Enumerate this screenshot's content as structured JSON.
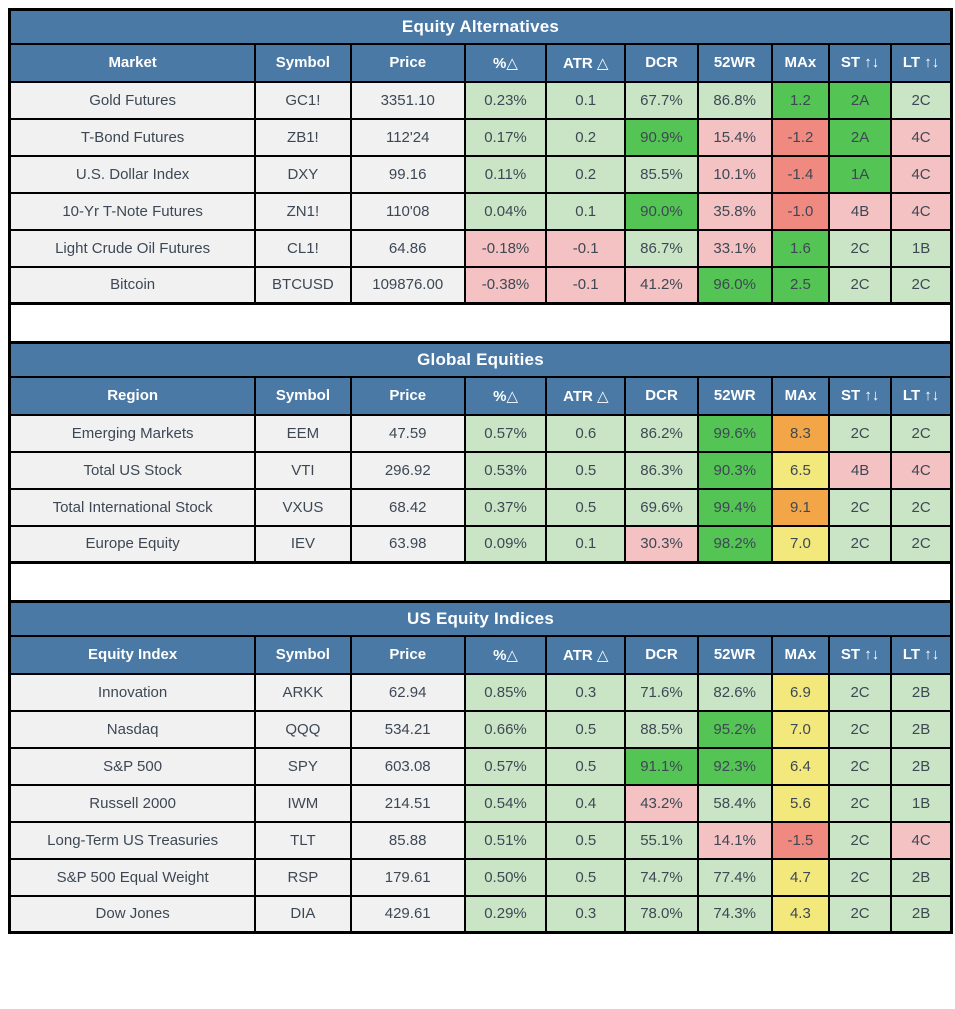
{
  "colors": {
    "header_blue": "#4a79a5",
    "bright_green": "#54c454",
    "light_green": "#cae5c5",
    "light_red": "#f4c2c3",
    "strong_red": "#f08a81",
    "yellow": "#f3e87c",
    "orange": "#f3a647",
    "neutral_cell": "#f1f1f2",
    "text": "#3d4854",
    "grid_line": "#000000"
  },
  "tables": [
    {
      "title": "Equity Alternatives",
      "headers": [
        "Market",
        "Symbol",
        "Price",
        "%△",
        "ATR △",
        "DCR",
        "52WR",
        "MAx",
        "ST ↑↓",
        "LT ↑↓"
      ],
      "rows": [
        {
          "cells": [
            [
              "Gold Futures",
              "n"
            ],
            [
              "GC1!",
              "n"
            ],
            [
              "3351.10",
              "n"
            ],
            [
              "0.23%",
              "lg"
            ],
            [
              "0.1",
              "lg"
            ],
            [
              "67.7%",
              "lg"
            ],
            [
              "86.8%",
              "lg"
            ],
            [
              "1.2",
              "g"
            ],
            [
              "2A",
              "g"
            ],
            [
              "2C",
              "lg"
            ]
          ]
        },
        {
          "cells": [
            [
              "T-Bond Futures",
              "n"
            ],
            [
              "ZB1!",
              "n"
            ],
            [
              "112'24",
              "n"
            ],
            [
              "0.17%",
              "lg"
            ],
            [
              "0.2",
              "lg"
            ],
            [
              "90.9%",
              "g"
            ],
            [
              "15.4%",
              "p"
            ],
            [
              "-1.2",
              "r"
            ],
            [
              "2A",
              "g"
            ],
            [
              "4C",
              "p"
            ]
          ]
        },
        {
          "cells": [
            [
              "U.S. Dollar Index",
              "n"
            ],
            [
              "DXY",
              "n"
            ],
            [
              "99.16",
              "n"
            ],
            [
              "0.11%",
              "lg"
            ],
            [
              "0.2",
              "lg"
            ],
            [
              "85.5%",
              "lg"
            ],
            [
              "10.1%",
              "p"
            ],
            [
              "-1.4",
              "r"
            ],
            [
              "1A",
              "g"
            ],
            [
              "4C",
              "p"
            ]
          ]
        },
        {
          "cells": [
            [
              "10-Yr T-Note Futures",
              "n"
            ],
            [
              "ZN1!",
              "n"
            ],
            [
              "110'08",
              "n"
            ],
            [
              "0.04%",
              "lg"
            ],
            [
              "0.1",
              "lg"
            ],
            [
              "90.0%",
              "g"
            ],
            [
              "35.8%",
              "p"
            ],
            [
              "-1.0",
              "r"
            ],
            [
              "4B",
              "p"
            ],
            [
              "4C",
              "p"
            ]
          ]
        },
        {
          "cells": [
            [
              "Light Crude Oil Futures",
              "n"
            ],
            [
              "CL1!",
              "n"
            ],
            [
              "64.86",
              "n"
            ],
            [
              "-0.18%",
              "p"
            ],
            [
              "-0.1",
              "p"
            ],
            [
              "86.7%",
              "lg"
            ],
            [
              "33.1%",
              "p"
            ],
            [
              "1.6",
              "g"
            ],
            [
              "2C",
              "lg"
            ],
            [
              "1B",
              "lg"
            ]
          ]
        },
        {
          "cells": [
            [
              "Bitcoin",
              "n"
            ],
            [
              "BTCUSD",
              "n"
            ],
            [
              "109876.00",
              "n"
            ],
            [
              "-0.38%",
              "p"
            ],
            [
              "-0.1",
              "p"
            ],
            [
              "41.2%",
              "p"
            ],
            [
              "96.0%",
              "g"
            ],
            [
              "2.5",
              "g"
            ],
            [
              "2C",
              "lg"
            ],
            [
              "2C",
              "lg"
            ]
          ]
        }
      ]
    },
    {
      "title": "Global Equities",
      "headers": [
        "Region",
        "Symbol",
        "Price",
        "%△",
        "ATR △",
        "DCR",
        "52WR",
        "MAx",
        "ST ↑↓",
        "LT ↑↓"
      ],
      "rows": [
        {
          "cells": [
            [
              "Emerging Markets",
              "n"
            ],
            [
              "EEM",
              "n"
            ],
            [
              "47.59",
              "n"
            ],
            [
              "0.57%",
              "lg"
            ],
            [
              "0.6",
              "lg"
            ],
            [
              "86.2%",
              "lg"
            ],
            [
              "99.6%",
              "g"
            ],
            [
              "8.3",
              "o"
            ],
            [
              "2C",
              "lg"
            ],
            [
              "2C",
              "lg"
            ]
          ]
        },
        {
          "cells": [
            [
              "Total US Stock",
              "n"
            ],
            [
              "VTI",
              "n"
            ],
            [
              "296.92",
              "n"
            ],
            [
              "0.53%",
              "lg"
            ],
            [
              "0.5",
              "lg"
            ],
            [
              "86.3%",
              "lg"
            ],
            [
              "90.3%",
              "g"
            ],
            [
              "6.5",
              "y"
            ],
            [
              "4B",
              "p"
            ],
            [
              "4C",
              "p"
            ]
          ]
        },
        {
          "cells": [
            [
              "Total International Stock",
              "n"
            ],
            [
              "VXUS",
              "n"
            ],
            [
              "68.42",
              "n"
            ],
            [
              "0.37%",
              "lg"
            ],
            [
              "0.5",
              "lg"
            ],
            [
              "69.6%",
              "lg"
            ],
            [
              "99.4%",
              "g"
            ],
            [
              "9.1",
              "o"
            ],
            [
              "2C",
              "lg"
            ],
            [
              "2C",
              "lg"
            ]
          ]
        },
        {
          "cells": [
            [
              "Europe Equity",
              "n"
            ],
            [
              "IEV",
              "n"
            ],
            [
              "63.98",
              "n"
            ],
            [
              "0.09%",
              "lg"
            ],
            [
              "0.1",
              "lg"
            ],
            [
              "30.3%",
              "p"
            ],
            [
              "98.2%",
              "g"
            ],
            [
              "7.0",
              "y"
            ],
            [
              "2C",
              "lg"
            ],
            [
              "2C",
              "lg"
            ]
          ]
        }
      ]
    },
    {
      "title": "US Equity Indices",
      "headers": [
        "Equity Index",
        "Symbol",
        "Price",
        "%△",
        "ATR △",
        "DCR",
        "52WR",
        "MAx",
        "ST ↑↓",
        "LT ↑↓"
      ],
      "rows": [
        {
          "cells": [
            [
              "Innovation",
              "n"
            ],
            [
              "ARKK",
              "n"
            ],
            [
              "62.94",
              "n"
            ],
            [
              "0.85%",
              "lg"
            ],
            [
              "0.3",
              "lg"
            ],
            [
              "71.6%",
              "lg"
            ],
            [
              "82.6%",
              "lg"
            ],
            [
              "6.9",
              "y"
            ],
            [
              "2C",
              "lg"
            ],
            [
              "2B",
              "lg"
            ]
          ]
        },
        {
          "cells": [
            [
              "Nasdaq",
              "n"
            ],
            [
              "QQQ",
              "n"
            ],
            [
              "534.21",
              "n"
            ],
            [
              "0.66%",
              "lg"
            ],
            [
              "0.5",
              "lg"
            ],
            [
              "88.5%",
              "lg"
            ],
            [
              "95.2%",
              "g"
            ],
            [
              "7.0",
              "y"
            ],
            [
              "2C",
              "lg"
            ],
            [
              "2B",
              "lg"
            ]
          ]
        },
        {
          "cells": [
            [
              "S&P 500",
              "n"
            ],
            [
              "SPY",
              "n"
            ],
            [
              "603.08",
              "n"
            ],
            [
              "0.57%",
              "lg"
            ],
            [
              "0.5",
              "lg"
            ],
            [
              "91.1%",
              "g"
            ],
            [
              "92.3%",
              "g"
            ],
            [
              "6.4",
              "y"
            ],
            [
              "2C",
              "lg"
            ],
            [
              "2B",
              "lg"
            ]
          ]
        },
        {
          "cells": [
            [
              "Russell 2000",
              "n"
            ],
            [
              "IWM",
              "n"
            ],
            [
              "214.51",
              "n"
            ],
            [
              "0.54%",
              "lg"
            ],
            [
              "0.4",
              "lg"
            ],
            [
              "43.2%",
              "p"
            ],
            [
              "58.4%",
              "lg"
            ],
            [
              "5.6",
              "y"
            ],
            [
              "2C",
              "lg"
            ],
            [
              "1B",
              "lg"
            ]
          ]
        },
        {
          "cells": [
            [
              "Long-Term US Treasuries",
              "n"
            ],
            [
              "TLT",
              "n"
            ],
            [
              "85.88",
              "n"
            ],
            [
              "0.51%",
              "lg"
            ],
            [
              "0.5",
              "lg"
            ],
            [
              "55.1%",
              "lg"
            ],
            [
              "14.1%",
              "p"
            ],
            [
              "-1.5",
              "r"
            ],
            [
              "2C",
              "lg"
            ],
            [
              "4C",
              "p"
            ]
          ]
        },
        {
          "cells": [
            [
              "S&P 500 Equal Weight",
              "n"
            ],
            [
              "RSP",
              "n"
            ],
            [
              "179.61",
              "n"
            ],
            [
              "0.50%",
              "lg"
            ],
            [
              "0.5",
              "lg"
            ],
            [
              "74.7%",
              "lg"
            ],
            [
              "77.4%",
              "lg"
            ],
            [
              "4.7",
              "y"
            ],
            [
              "2C",
              "lg"
            ],
            [
              "2B",
              "lg"
            ]
          ]
        },
        {
          "cells": [
            [
              "Dow Jones",
              "n"
            ],
            [
              "DIA",
              "n"
            ],
            [
              "429.61",
              "n"
            ],
            [
              "0.29%",
              "lg"
            ],
            [
              "0.3",
              "lg"
            ],
            [
              "78.0%",
              "lg"
            ],
            [
              "74.3%",
              "lg"
            ],
            [
              "4.3",
              "y"
            ],
            [
              "2C",
              "lg"
            ],
            [
              "2B",
              "lg"
            ]
          ]
        }
      ]
    }
  ]
}
